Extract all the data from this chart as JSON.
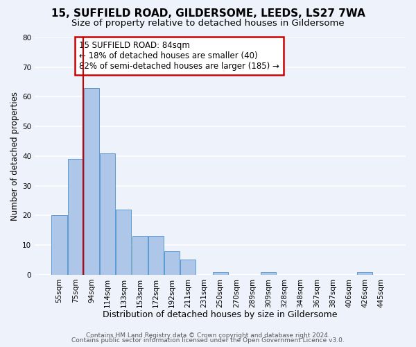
{
  "title": "15, SUFFIELD ROAD, GILDERSOME, LEEDS, LS27 7WA",
  "subtitle": "Size of property relative to detached houses in Gildersome",
  "xlabel": "Distribution of detached houses by size in Gildersome",
  "ylabel": "Number of detached properties",
  "bar_labels": [
    "55sqm",
    "75sqm",
    "94sqm",
    "114sqm",
    "133sqm",
    "153sqm",
    "172sqm",
    "192sqm",
    "211sqm",
    "231sqm",
    "250sqm",
    "270sqm",
    "289sqm",
    "309sqm",
    "328sqm",
    "348sqm",
    "367sqm",
    "387sqm",
    "406sqm",
    "426sqm",
    "445sqm"
  ],
  "bar_values": [
    20,
    39,
    63,
    41,
    22,
    13,
    13,
    8,
    5,
    0,
    1,
    0,
    0,
    1,
    0,
    0,
    0,
    0,
    0,
    1,
    0
  ],
  "bar_color": "#aec6e8",
  "bar_edge_color": "#5b9bd5",
  "ylim": [
    0,
    80
  ],
  "yticks": [
    0,
    10,
    20,
    30,
    40,
    50,
    60,
    70,
    80
  ],
  "annotation_line1": "15 SUFFIELD ROAD: 84sqm",
  "annotation_line2": "← 18% of detached houses are smaller (40)",
  "annotation_line3": "82% of semi-detached houses are larger (185) →",
  "annotation_box_color": "#ffffff",
  "annotation_box_edge_color": "#cc0000",
  "red_line_color": "#cc0000",
  "background_color": "#eef2fa",
  "grid_color": "#ffffff",
  "footer_line1": "Contains HM Land Registry data © Crown copyright and database right 2024.",
  "footer_line2": "Contains public sector information licensed under the Open Government Licence v3.0.",
  "title_fontsize": 11,
  "subtitle_fontsize": 9.5,
  "xlabel_fontsize": 9,
  "ylabel_fontsize": 8.5,
  "tick_fontsize": 7.5,
  "annotation_fontsize": 8.5,
  "footer_fontsize": 6.5
}
